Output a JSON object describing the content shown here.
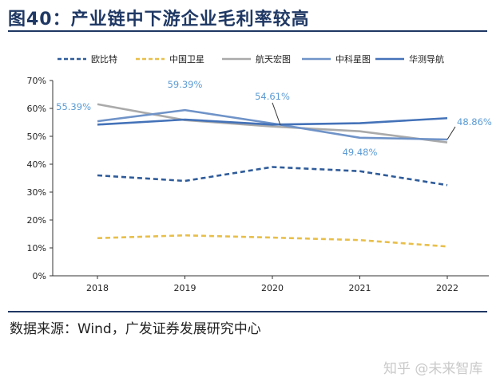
{
  "figure": {
    "title": "图40：产业链中下游企业毛利率较高",
    "source": "数据来源：Wind，广发证券发展研究中心",
    "watermark": "知乎 @未来智库"
  },
  "chart_data": {
    "type": "line",
    "title": "图40：产业链中下游企业毛利率较高",
    "categories": [
      "2018",
      "2019",
      "2020",
      "2021",
      "2022"
    ],
    "y_ticks": [
      "0%",
      "10%",
      "20%",
      "30%",
      "40%",
      "50%",
      "60%",
      "70%"
    ],
    "ylim": [
      0,
      70
    ],
    "y_unit": "%",
    "legend_position": "top",
    "grid": false,
    "series": [
      {
        "name": "欧比特",
        "values": [
          36.0,
          34.0,
          39.0,
          37.5,
          32.5
        ],
        "color": "#2e5b9a",
        "dash": "dash"
      },
      {
        "name": "中国卫星",
        "values": [
          13.5,
          14.5,
          13.7,
          12.8,
          10.5
        ],
        "color": "#e8bf4a",
        "dash": "dash"
      },
      {
        "name": "航天宏图",
        "values": [
          61.5,
          55.8,
          53.5,
          51.8,
          47.8
        ],
        "color": "#aaaaaa",
        "dash": "solid"
      },
      {
        "name": "中科星图",
        "values": [
          55.39,
          59.39,
          54.61,
          49.48,
          48.86
        ],
        "color": "#6f93c8",
        "dash": "solid"
      },
      {
        "name": "华测导航",
        "values": [
          54.2,
          56.0,
          54.2,
          54.7,
          56.5
        ],
        "color": "#4472b8",
        "dash": "solid"
      }
    ],
    "annotations": [
      {
        "series": "中科星图",
        "index": 0,
        "label": "55.39%"
      },
      {
        "series": "中科星图",
        "index": 1,
        "label": "59.39%"
      },
      {
        "series": "中科星图",
        "index": 2,
        "label": "54.61%"
      },
      {
        "series": "中科星图",
        "index": 3,
        "label": "49.48%"
      },
      {
        "series": "中科星图",
        "index": 4,
        "label": "48.86%"
      }
    ],
    "annotation_color": "#5b9bd5"
  }
}
